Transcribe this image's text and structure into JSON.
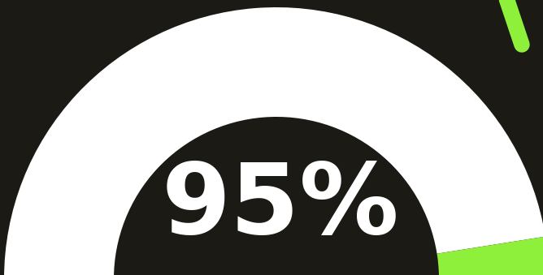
{
  "chart_data": {
    "type": "gauge",
    "values": [
      95
    ],
    "value_labels": [
      "95%"
    ],
    "color": "#ffffff"
  }
}
